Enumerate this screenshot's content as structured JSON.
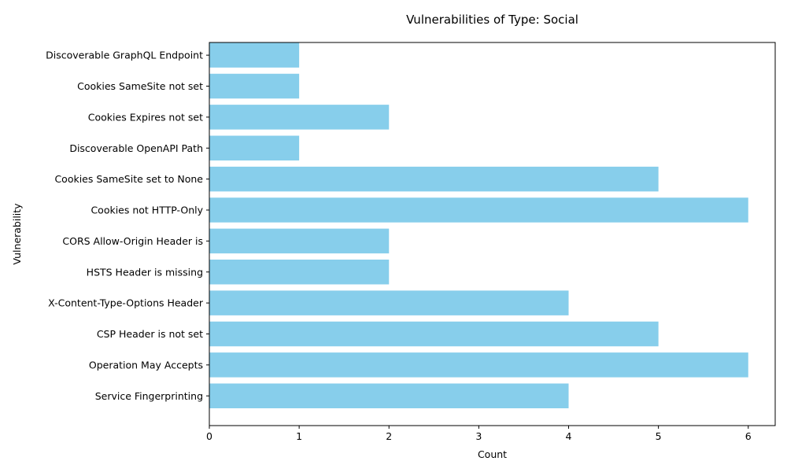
{
  "chart_data": {
    "type": "bar",
    "orientation": "horizontal",
    "title": "Vulnerabilities of Type: Social",
    "xlabel": "Count",
    "ylabel": "Vulnerability",
    "bar_color": "#87ceeb",
    "xlim": [
      0,
      6.3
    ],
    "xticks": [
      0,
      1,
      2,
      3,
      4,
      5,
      6
    ],
    "grid": false,
    "categories": [
      "Service Fingerprinting",
      "Operation May Accepts",
      "CSP Header is not set",
      "X-Content-Type-Options Header",
      "HSTS Header is missing",
      "CORS Allow-Origin Header is",
      "Cookies not HTTP-Only",
      "Cookies SameSite set to None",
      "Discoverable OpenAPI Path",
      "Cookies Expires not set",
      "Cookies SameSite not set",
      "Discoverable GraphQL Endpoint"
    ],
    "values": [
      4,
      6,
      5,
      4,
      2,
      2,
      6,
      5,
      1,
      2,
      1,
      1
    ]
  }
}
